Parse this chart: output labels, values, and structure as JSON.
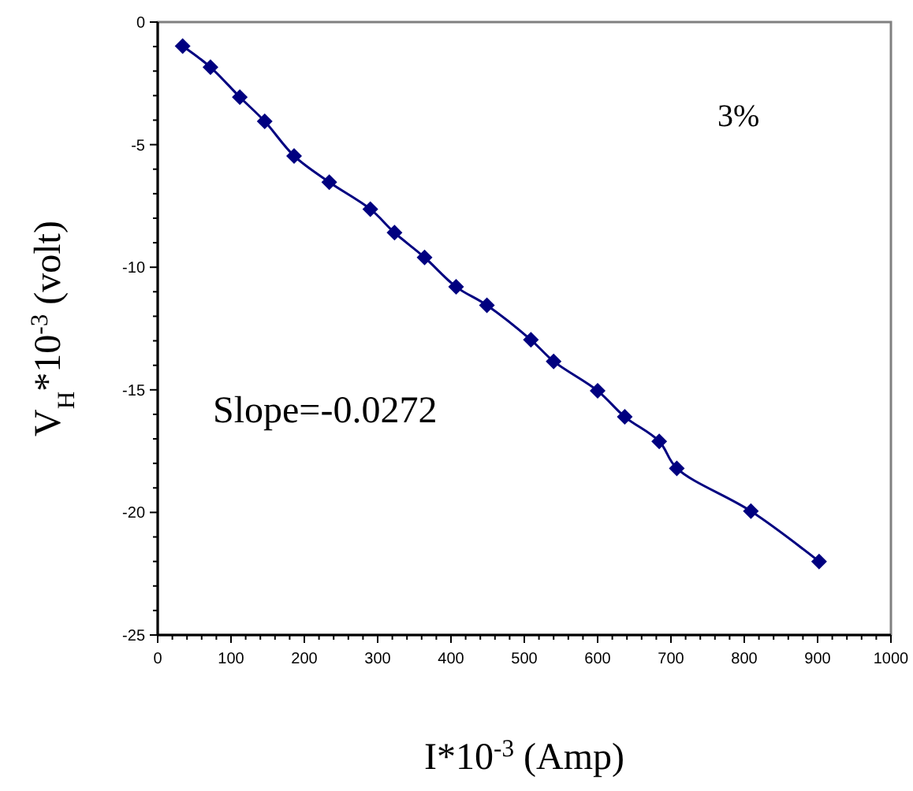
{
  "chart_data": {
    "type": "line",
    "xlabel": "I*10$^{-3}$ (Amp)",
    "ylabel": "V$_{H}$*10$^{-3}$ (volt)",
    "x": [
      34,
      72,
      112,
      146,
      186,
      234,
      290,
      323,
      364,
      407,
      449,
      509,
      540,
      600,
      637,
      684,
      708,
      809,
      902
    ],
    "series": [
      {
        "color": "#000080",
        "values": [
          -0.98,
          -1.84,
          -3.06,
          -4.05,
          -5.46,
          -6.53,
          -7.63,
          -8.59,
          -9.6,
          -10.8,
          -11.55,
          -12.96,
          -13.84,
          -15.04,
          -16.1,
          -17.1,
          -18.2,
          -19.95,
          -22.0
        ]
      }
    ],
    "xlim": [
      0,
      1000
    ],
    "xticks": [
      0,
      100,
      200,
      300,
      400,
      500,
      600,
      700,
      800,
      900,
      1000
    ],
    "ylim": [
      -25,
      0
    ],
    "yticks": [
      -25,
      -20,
      -15,
      -10,
      -5,
      0
    ],
    "marker": "diamond",
    "grid": false,
    "annotations": [
      "3%",
      "Slope=-0.0272"
    ]
  }
}
